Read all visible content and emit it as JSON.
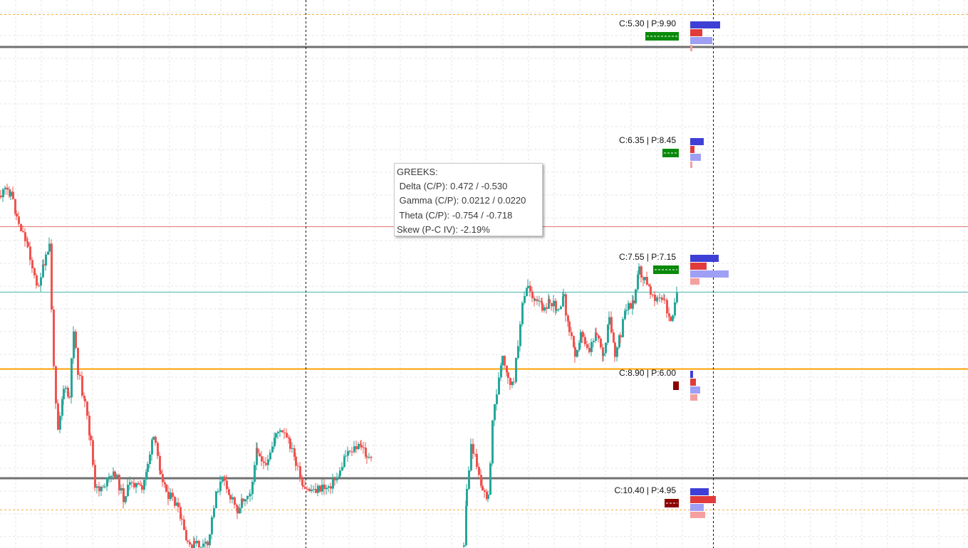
{
  "chart_data": {
    "type": "candlestick",
    "colors": {
      "up": "#26a69a",
      "down": "#ef5350",
      "grid": "#e6e6e6",
      "hline_gray": "#707070",
      "hline_red": "#e57373",
      "hline_teal": "#4db6ac",
      "hline_orange": "#ffa000",
      "dotted_orange": "#f5b041",
      "call_oi": "#3f3fd6",
      "put_oi": "#e03c3c",
      "call_vol": "#9f9ff5",
      "put_vol": "#f5a0a0",
      "net_pos": "#0a8a0a",
      "net_neg": "#8b0000"
    },
    "strikes": [
      {
        "label": "C:5.30 | P:9.90",
        "net": "pos",
        "call_oi": 42,
        "put_oi": 17,
        "call_vol": 31,
        "put_vol": 3,
        "net_w": 47
      },
      {
        "label": "C:6.35 | P:8.45",
        "net": "pos",
        "call_oi": 19,
        "put_oi": 6,
        "call_vol": 15,
        "put_vol": 3,
        "net_w": 23
      },
      {
        "label": "C:7.55 | P:7.15",
        "net": "pos",
        "call_oi": 40,
        "put_oi": 23,
        "call_vol": 54,
        "put_vol": 13,
        "net_w": 36
      },
      {
        "label": "C:8.90 | P:6.00",
        "net": "neg",
        "call_oi": 4,
        "put_oi": 8,
        "call_vol": 14,
        "put_vol": 10,
        "net_w": 8
      },
      {
        "label": "C:10.40 | P:4.95",
        "net": "neg",
        "call_oi": 26,
        "put_oi": 36,
        "call_vol": 19,
        "put_vol": 21,
        "net_w": 20
      }
    ]
  },
  "tooltip": {
    "title": "GREEKS:",
    "delta": " Delta (C/P): 0.472 / -0.530",
    "gamma": " Gamma (C/P): 0.0212 / 0.0220",
    "theta": " Theta (C/P): -0.754 / -0.718",
    "skew": "Skew (P-C IV): -2.19%"
  }
}
